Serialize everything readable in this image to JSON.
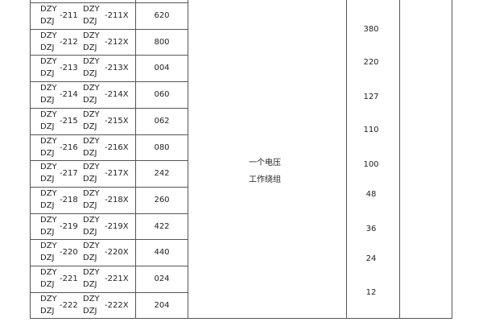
{
  "rows": [
    {
      "prefix_top": "DZY",
      "prefix_bottom": "DZJ",
      "num": "-211",
      "prefix2_top": "DZY",
      "prefix2_bottom": "DZJ",
      "num2": "-211X",
      "code": "620"
    },
    {
      "prefix_top": "DZY",
      "prefix_bottom": "DZJ",
      "num": "-212",
      "prefix2_top": "DZY",
      "prefix2_bottom": "DZJ",
      "num2": "-212X",
      "code": "800"
    },
    {
      "prefix_top": "DZY",
      "prefix_bottom": "DZJ",
      "num": "-213",
      "prefix2_top": "DZY",
      "prefix2_bottom": "DZJ",
      "num2": "-213X",
      "code": "004"
    },
    {
      "prefix_top": "DZY",
      "prefix_bottom": "DZJ",
      "num": "-214",
      "prefix2_top": "DZY",
      "prefix2_bottom": "DZJ",
      "num2": "-214X",
      "code": "060"
    },
    {
      "prefix_top": "DZY",
      "prefix_bottom": "DZJ",
      "num": "-215",
      "prefix2_top": "DZY",
      "prefix2_bottom": "DZJ",
      "num2": "-215X",
      "code": "062"
    },
    {
      "prefix_top": "DZY",
      "prefix_bottom": "DZJ",
      "num": "-216",
      "prefix2_top": "DZY",
      "prefix2_bottom": "DZJ",
      "num2": "-216X",
      "code": "080"
    },
    {
      "prefix_top": "DZY",
      "prefix_bottom": "DZJ",
      "num": "-217",
      "prefix2_top": "DZY",
      "prefix2_bottom": "DZJ",
      "num2": "-217X",
      "code": "242"
    },
    {
      "prefix_top": "DZY",
      "prefix_bottom": "DZJ",
      "num": "-218",
      "prefix2_top": "DZY",
      "prefix2_bottom": "DZJ",
      "num2": "-218X",
      "code": "260"
    },
    {
      "prefix_top": "DZY",
      "prefix_bottom": "DZJ",
      "num": "-219",
      "prefix2_top": "DZY",
      "prefix2_bottom": "DZJ",
      "num2": "-219X",
      "code": "422"
    },
    {
      "prefix_top": "DZY",
      "prefix_bottom": "DZJ",
      "num": "-220",
      "prefix2_top": "DZY",
      "prefix2_bottom": "DZJ",
      "num2": "-220X",
      "code": "440"
    },
    {
      "prefix_top": "DZY",
      "prefix_bottom": "DZJ",
      "num": "-221",
      "prefix2_top": "DZY",
      "prefix2_bottom": "DZJ",
      "num2": "-221X",
      "code": "024"
    },
    {
      "prefix_top": "DZY",
      "prefix_bottom": "DZJ",
      "num": "-222",
      "prefix2_top": "DZY",
      "prefix2_bottom": "DZJ",
      "num2": "-222X",
      "code": "204"
    }
  ],
  "winding": {
    "line1": "一个电压",
    "line2": "工作绕组"
  },
  "voltages": [
    "380",
    "220",
    "127",
    "110",
    "100",
    "48",
    "36",
    "24",
    "12"
  ]
}
